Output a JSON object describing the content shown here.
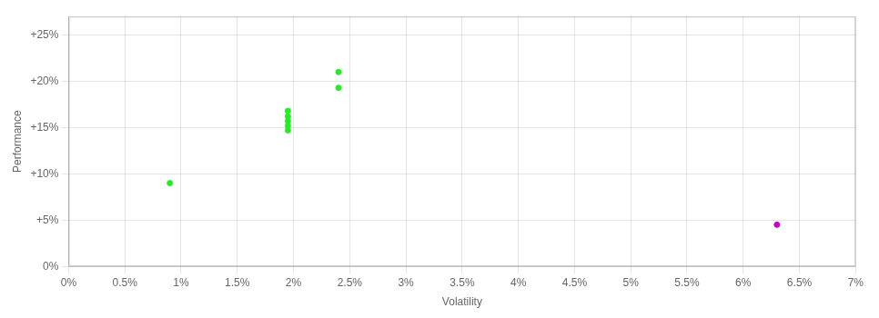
{
  "chart_data": {
    "type": "scatter",
    "x_label": "Volatility",
    "y_label": "Performance",
    "series": [
      {
        "color": "#22ee22",
        "x": [
          0.009,
          0.0195,
          0.0195,
          0.0195,
          0.0195,
          0.0195,
          0.024,
          0.024
        ],
        "values": [
          0.09,
          0.168,
          0.162,
          0.157,
          0.152,
          0.147,
          0.21,
          0.193
        ]
      },
      {
        "color": "#cc00cc",
        "x": [
          0.063
        ],
        "values": [
          0.045
        ]
      }
    ],
    "xlim": [
      0.0,
      0.07
    ],
    "ylim": [
      0.0,
      0.27
    ],
    "xticks": [
      {
        "value": 0.0,
        "label": "0%"
      },
      {
        "value": 0.005,
        "label": "0.5%"
      },
      {
        "value": 0.01,
        "label": "1%"
      },
      {
        "value": 0.015,
        "label": "1.5%"
      },
      {
        "value": 0.02,
        "label": "2%"
      },
      {
        "value": 0.025,
        "label": "2.5%"
      },
      {
        "value": 0.03,
        "label": "3%"
      },
      {
        "value": 0.035,
        "label": "3.5%"
      },
      {
        "value": 0.04,
        "label": "4%"
      },
      {
        "value": 0.045,
        "label": "4.5%"
      },
      {
        "value": 0.05,
        "label": "5%"
      },
      {
        "value": 0.055,
        "label": "5.5%"
      },
      {
        "value": 0.06,
        "label": "6%"
      },
      {
        "value": 0.065,
        "label": "6.5%"
      },
      {
        "value": 0.07,
        "label": "7%"
      }
    ],
    "yticks": [
      {
        "value": 0.0,
        "label": "0%"
      },
      {
        "value": 0.05,
        "label": "+5%"
      },
      {
        "value": 0.1,
        "label": "+10%"
      },
      {
        "value": 0.15,
        "label": "+15%"
      },
      {
        "value": 0.2,
        "label": "+20%"
      },
      {
        "value": 0.25,
        "label": "+25%"
      }
    ],
    "grid": true
  }
}
